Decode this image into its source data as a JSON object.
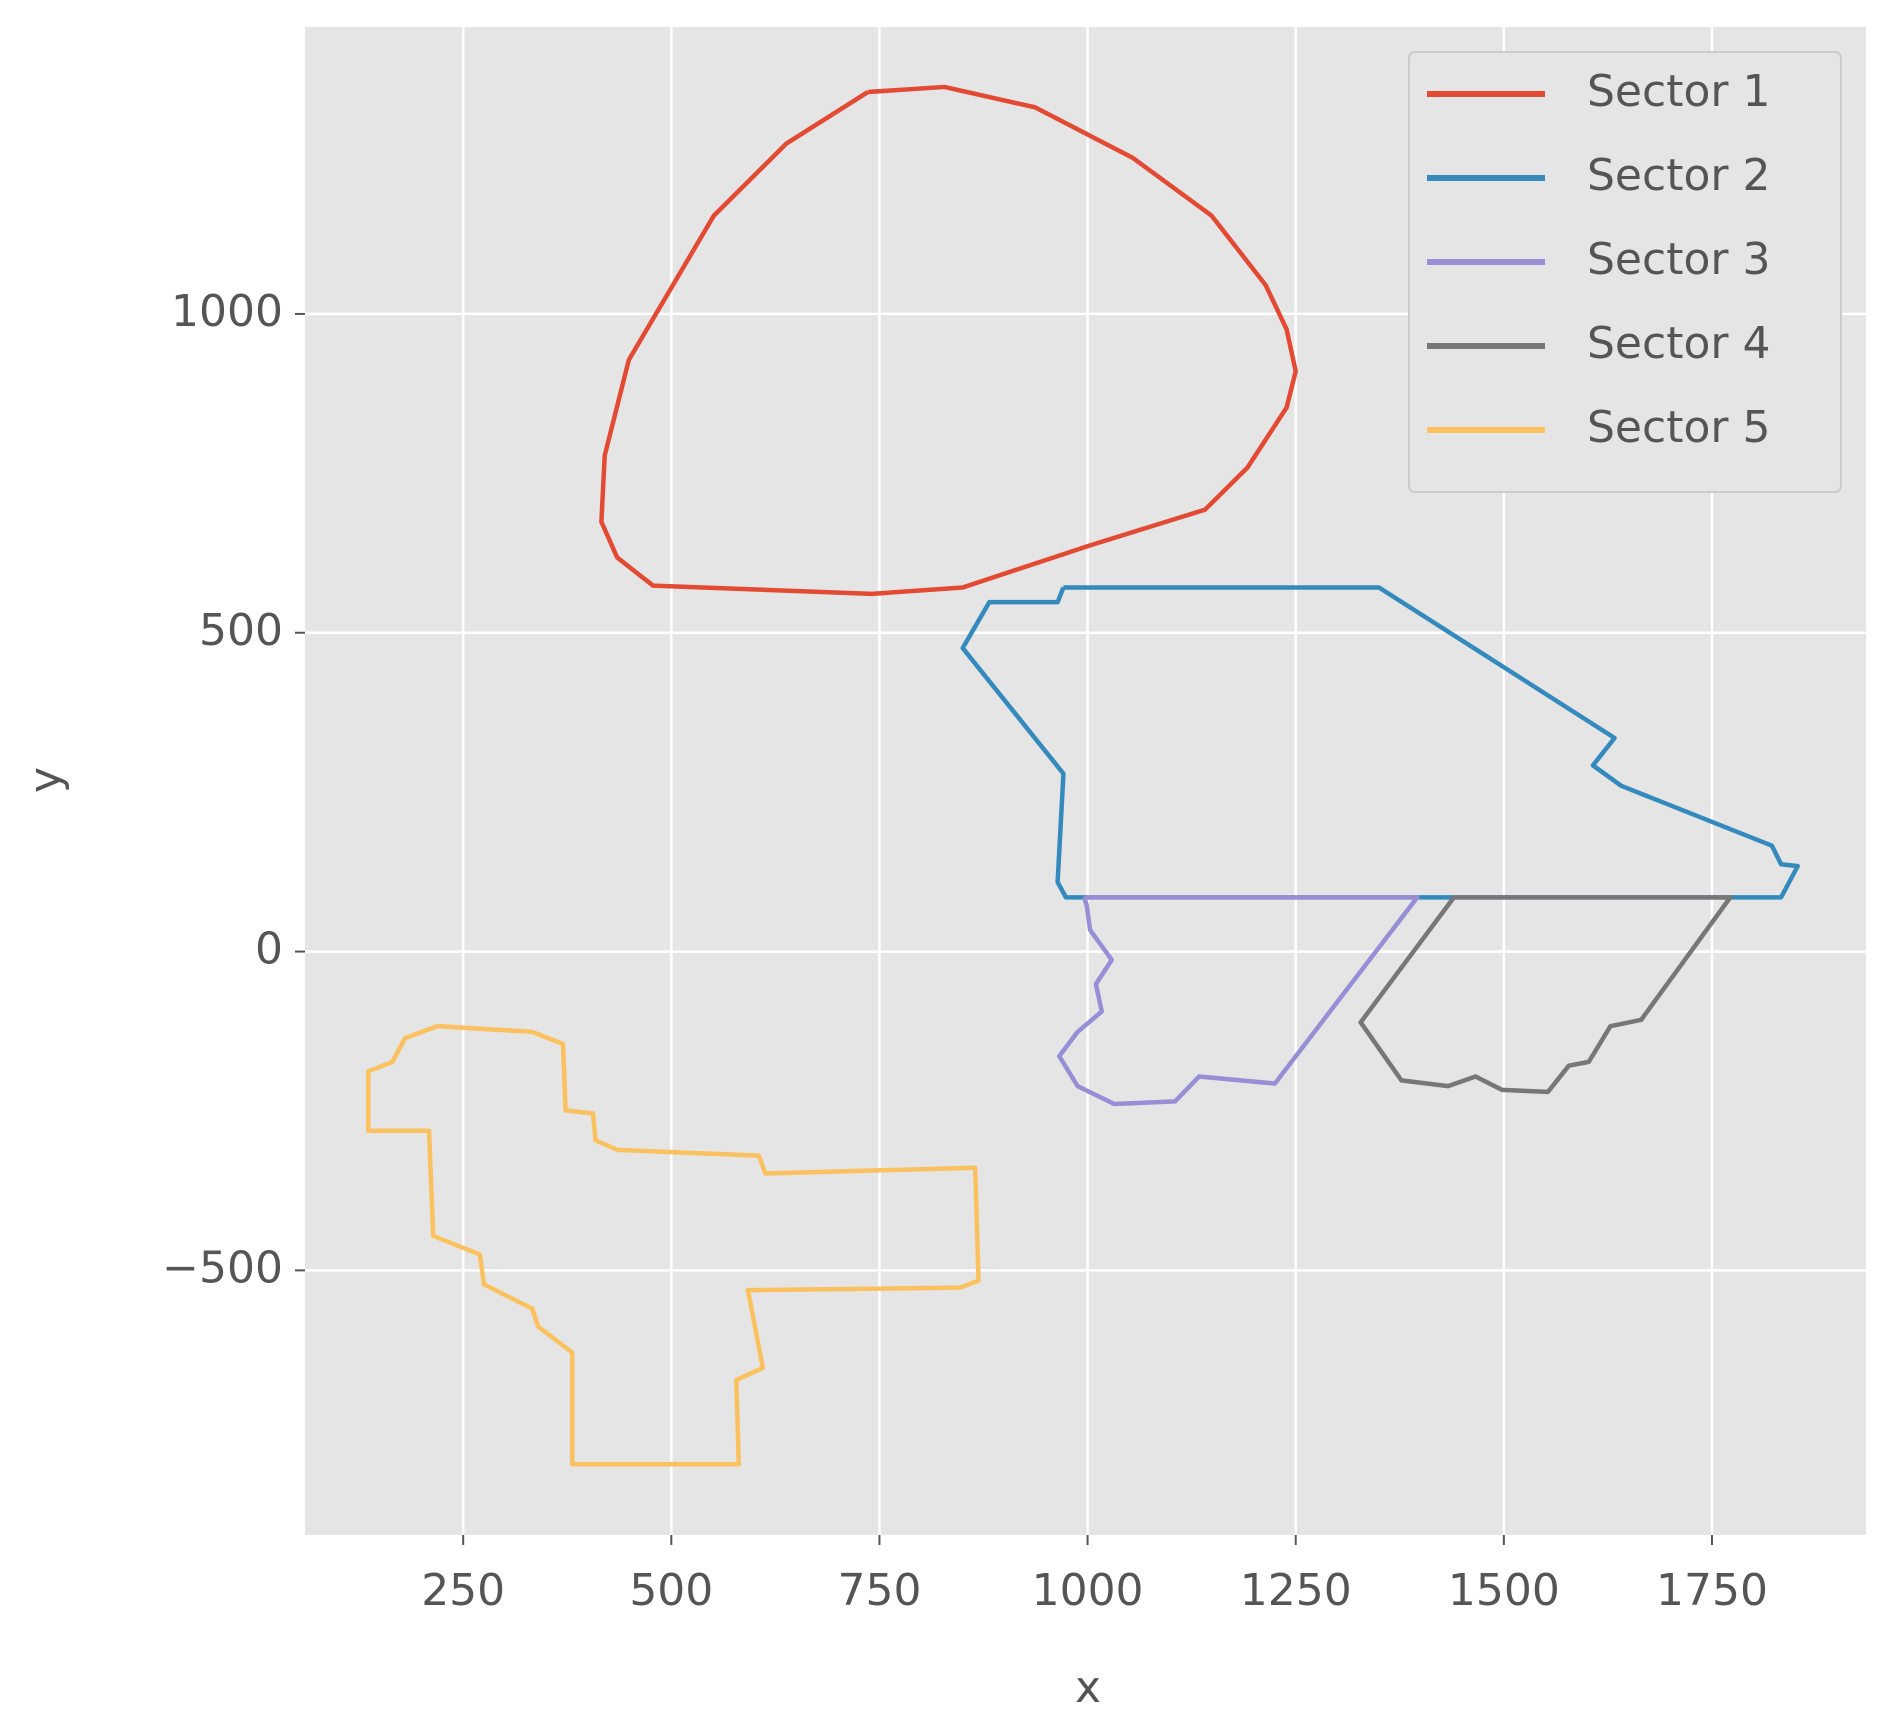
{
  "chart_data": {
    "type": "line",
    "x_label": "x",
    "y_label": "y",
    "xlim": [
      60,
      1935
    ],
    "ylim": [
      -915,
      1450
    ],
    "xticks": [
      250,
      500,
      750,
      1000,
      1250,
      1500,
      1750
    ],
    "yticks": [
      {
        "value": -500,
        "label": "−500"
      },
      0,
      500,
      1000
    ],
    "grid": true,
    "legend": "upper right",
    "series": [
      {
        "name": "Sector 1",
        "color": "#E24A33",
        "x": [
          736,
          828,
          937,
          1054,
          1149,
          1214,
          1239,
          1250,
          1239,
          1192,
          1141,
          1003,
          850,
          741,
          478,
          435,
          416,
          420,
          449,
          551,
          638,
          736
        ],
        "y": [
          1348,
          1356,
          1324,
          1245,
          1154,
          1045,
          976,
          910,
          853,
          759,
          693,
          637,
          571,
          561,
          574,
          618,
          674,
          778,
          928,
          1154,
          1267,
          1348
        ]
      },
      {
        "name": "Sector 2",
        "color": "#348ABD",
        "x": [
          971,
          1350,
          1633,
          1607,
          1641,
          1822,
          1833,
          1853,
          1833,
          974,
          964,
          971,
          850,
          882,
          964,
          971
        ],
        "y": [
          571,
          571,
          335,
          292,
          260,
          166,
          137,
          134,
          85,
          85,
          109,
          279,
          476,
          548,
          548,
          571
        ]
      },
      {
        "name": "Sector 3",
        "color": "#988ED5",
        "x": [
          996,
          1396,
          1225,
          1134,
          1105,
          1032,
          988,
          966,
          988,
          1017,
          1010,
          1029,
          1003,
          999,
          996
        ],
        "y": [
          85,
          85,
          -207,
          -196,
          -235,
          -239,
          -211,
          -164,
          -126,
          -94,
          -51,
          -13,
          34,
          72,
          85
        ]
      },
      {
        "name": "Sector 4",
        "color": "#777777",
        "x": [
          1440,
          1772,
          1665,
          1628,
          1602,
          1578,
          1553,
          1498,
          1466,
          1433,
          1377,
          1328,
          1440
        ],
        "y": [
          85,
          85,
          -107,
          -117,
          -173,
          -179,
          -220,
          -217,
          -196,
          -211,
          -202,
          -111,
          85
        ]
      },
      {
        "name": "Sector 5",
        "color": "#FBC15E",
        "x": [
          219,
          333,
          370,
          373,
          406,
          409,
          435,
          605,
          613,
          865,
          869,
          847,
          592,
          610,
          578,
          581,
          381,
          381,
          340,
          333,
          275,
          270,
          214,
          209,
          136,
          136,
          165,
          180,
          219
        ],
        "y": [
          -117,
          -126,
          -145,
          -249,
          -254,
          -296,
          -311,
          -320,
          -348,
          -339,
          -516,
          -527,
          -531,
          -653,
          -672,
          -804,
          -804,
          -629,
          -588,
          -560,
          -522,
          -475,
          -446,
          -281,
          -281,
          -188,
          -173,
          -136,
          -117
        ]
      }
    ]
  }
}
